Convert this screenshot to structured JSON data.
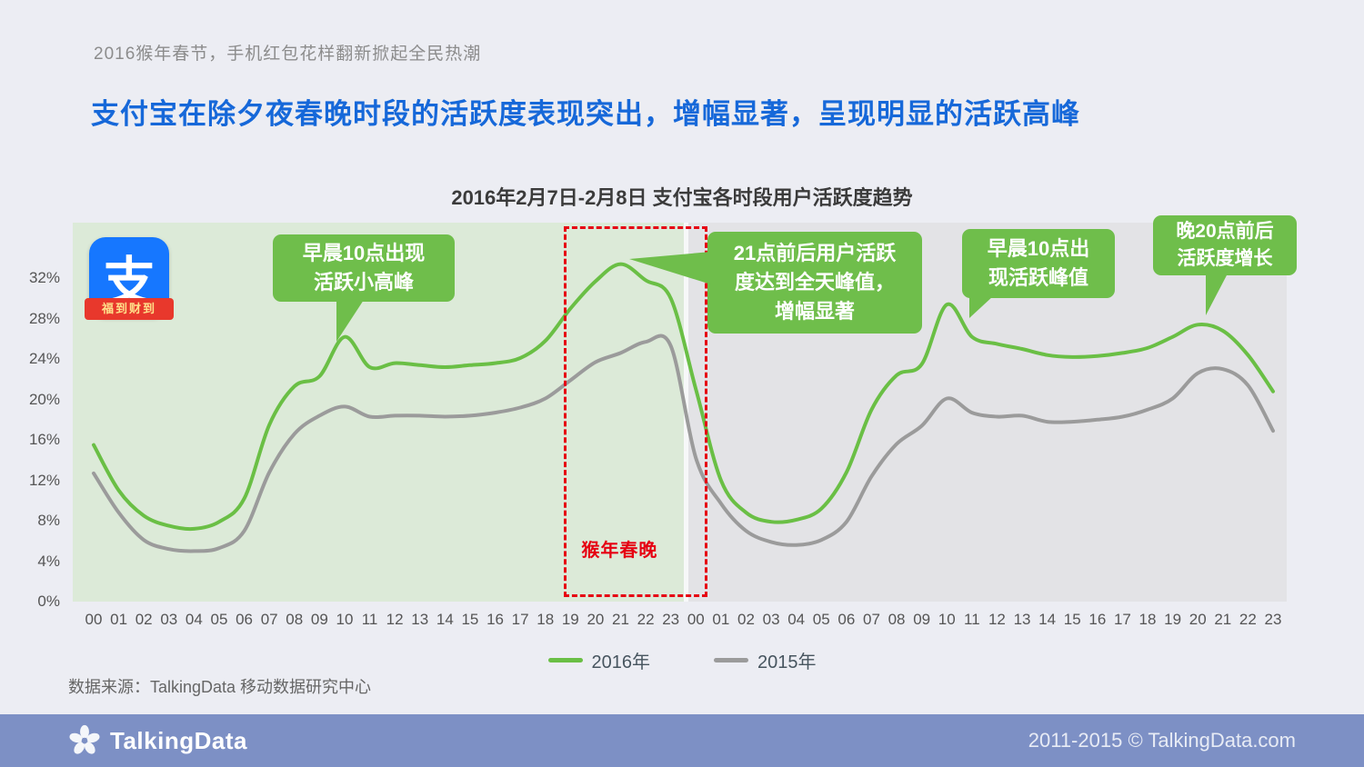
{
  "page": {
    "kicker": "2016猴年春节，手机红包花样翻新掀起全民热潮",
    "headline": "支付宝在除夕夜春晚时段的活跃度表现突出，增幅显著，呈现明显的活跃高峰"
  },
  "logo": {
    "char": "支",
    "banner": "福到财到"
  },
  "annotations": {
    "morning_day1": "早晨10点出现\n活跃小高峰",
    "peak_day1": "21点前后用户活跃\n度达到全天峰值，\n增幅显著",
    "morning_day2": "早晨10点出\n现活跃峰值",
    "evening_day2": "晚20点前后\n活跃度增长",
    "gala_label": "猴年春晚"
  },
  "source": "数据来源：TalkingData 移动数据研究中心",
  "footer": {
    "brand": "TalkingData",
    "copyright": "2011-2015 © TalkingData.com"
  },
  "chart_data": {
    "type": "line",
    "title": "2016年2月7日-2月8日 支付宝各时段用户活跃度趋势",
    "xlabel": "",
    "ylabel": "",
    "grid": false,
    "legend_position": "bottom",
    "x": [
      "00",
      "01",
      "02",
      "03",
      "04",
      "05",
      "06",
      "07",
      "08",
      "09",
      "10",
      "11",
      "12",
      "13",
      "14",
      "15",
      "16",
      "17",
      "18",
      "19",
      "20",
      "21",
      "22",
      "23",
      "00",
      "01",
      "02",
      "03",
      "04",
      "05",
      "06",
      "07",
      "08",
      "09",
      "10",
      "11",
      "12",
      "13",
      "14",
      "15",
      "16",
      "17",
      "18",
      "19",
      "20",
      "21",
      "22",
      "23"
    ],
    "series": [
      {
        "name": "2016年",
        "color": "#6abf45",
        "values": [
          15.5,
          11.0,
          8.5,
          7.5,
          7.2,
          7.9,
          10.2,
          17.5,
          21.3,
          22.3,
          26.2,
          23.2,
          23.6,
          23.4,
          23.2,
          23.4,
          23.6,
          24.1,
          25.8,
          29.0,
          31.7,
          33.4,
          31.8,
          30.0,
          21.0,
          12.0,
          8.8,
          7.9,
          8.1,
          9.2,
          12.8,
          19.0,
          22.4,
          23.5,
          29.4,
          26.2,
          25.5,
          25.0,
          24.4,
          24.2,
          24.3,
          24.6,
          25.1,
          26.2,
          27.4,
          26.8,
          24.4,
          20.8
        ]
      },
      {
        "name": "2015年",
        "color": "#9b9b9b",
        "values": [
          12.7,
          8.8,
          6.1,
          5.2,
          5.0,
          5.3,
          7.0,
          12.8,
          16.6,
          18.4,
          19.3,
          18.3,
          18.4,
          18.4,
          18.3,
          18.4,
          18.7,
          19.2,
          20.1,
          21.9,
          23.7,
          24.6,
          25.7,
          25.3,
          14.2,
          9.7,
          7.0,
          5.9,
          5.6,
          6.1,
          7.9,
          12.4,
          15.6,
          17.4,
          20.1,
          18.7,
          18.3,
          18.4,
          17.8,
          17.8,
          18.0,
          18.3,
          19.0,
          20.1,
          22.6,
          23.0,
          21.4,
          16.9
        ]
      }
    ],
    "ylim": [
      0,
      37.5
    ],
    "yticks": [
      0,
      4,
      8,
      12,
      16,
      20,
      24,
      28,
      32
    ],
    "ytick_suffix": "%",
    "day_split_index": 24,
    "highlight": {
      "label": "猴年春晚",
      "from_index": 18.75,
      "to_index": 24.25
    }
  }
}
